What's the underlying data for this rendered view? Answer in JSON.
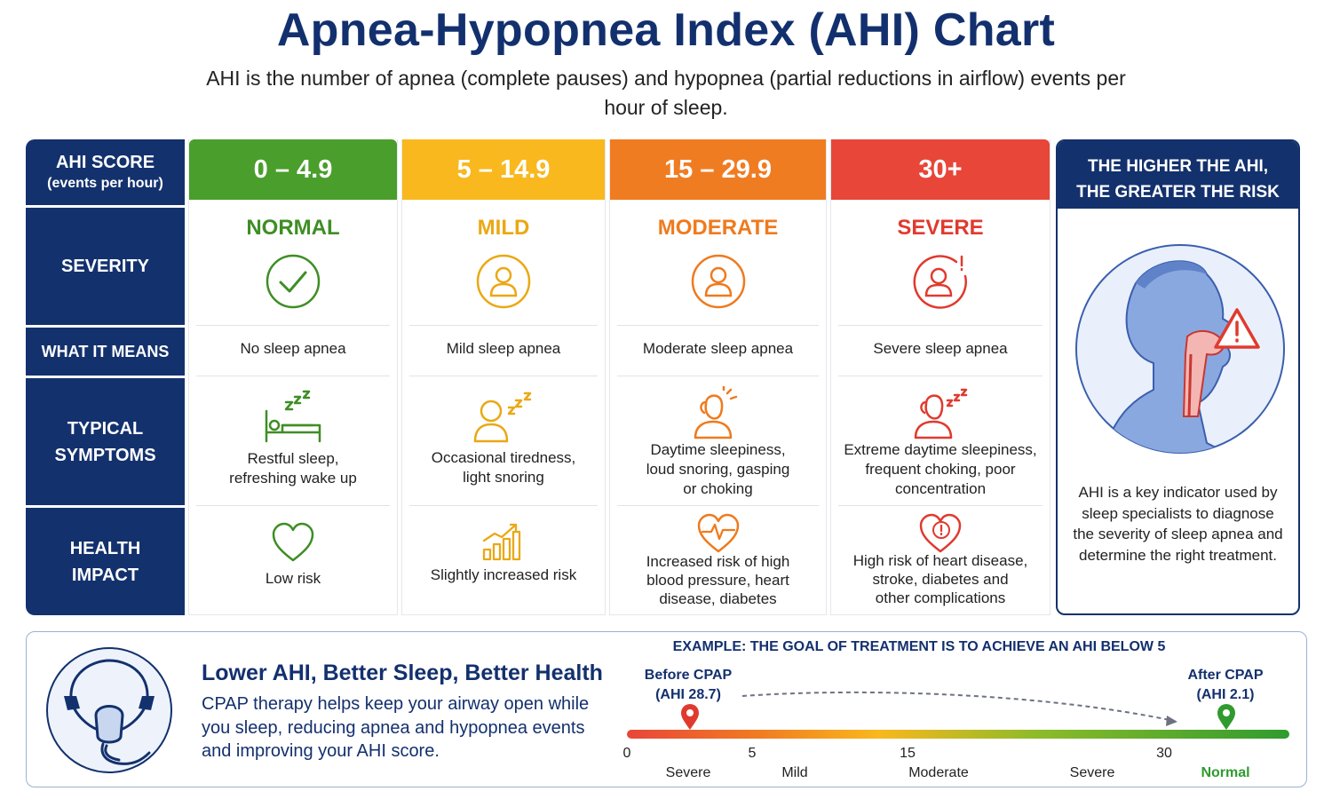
{
  "title": "Apnea-Hypopnea Index (AHI) Chart",
  "subtitle": "AHI is the number of apnea (complete pauses) and hypopnea (partial reductions in airflow) events per hour of sleep.",
  "labels": {
    "score_line1": "AHI SCORE",
    "score_line2": "(events per hour)",
    "severity": "SEVERITY",
    "what_it_means": "WHAT IT MEANS",
    "symptoms_line1": "TYPICAL",
    "symptoms_line2": "SYMPTOMS",
    "impact_line1": "HEALTH",
    "impact_line2": "IMPACT"
  },
  "categories": [
    {
      "range": "0 – 4.9",
      "severity": "NORMAL",
      "meaning": "No sleep apnea",
      "symptom_lines": [
        "Restful sleep,",
        "refreshing wake up"
      ],
      "impact_lines": [
        "Low risk"
      ],
      "color": "#4a9e2c",
      "text_color": "#3e8e24",
      "sym_icon": "sleeping-bed-icon",
      "sev_icon": "checkmark-circle-icon",
      "imp_icon": "heart-icon"
    },
    {
      "range": "5 – 14.9",
      "severity": "MILD",
      "meaning": "Mild sleep apnea",
      "symptom_lines": [
        "Occasional tiredness,",
        "light snoring"
      ],
      "impact_lines": [
        "Slightly increased risk"
      ],
      "color": "#f9b81e",
      "text_color": "#eaa814",
      "sym_icon": "sleepy-person-icon",
      "sev_icon": "person-circle-icon",
      "imp_icon": "rising-bars-icon"
    },
    {
      "range": "15 – 29.9",
      "severity": "MODERATE",
      "meaning": "Moderate sleep apnea",
      "symptom_lines": [
        "Daytime sleepiness,",
        "loud snoring, gasping",
        "or choking"
      ],
      "impact_lines": [
        "Increased risk of high",
        "blood pressure, heart",
        "disease, diabetes"
      ],
      "color": "#f07c22",
      "text_color": "#ef7a1e",
      "sym_icon": "tired-person-icon",
      "sev_icon": "person-circle-icon",
      "imp_icon": "heartbeat-icon"
    },
    {
      "range": "30+",
      "severity": "SEVERE",
      "meaning": "Severe sleep apnea",
      "symptom_lines": [
        "Extreme daytime sleepiness,",
        "frequent choking, poor",
        "concentration"
      ],
      "impact_lines": [
        "High risk of heart disease,",
        "stroke, diabetes and",
        "other complications"
      ],
      "color": "#e84639",
      "text_color": "#e03a2f",
      "sym_icon": "exhausted-person-icon",
      "sev_icon": "person-alert-circle-icon",
      "imp_icon": "heart-alert-icon"
    }
  ],
  "risk_panel": {
    "head_line1": "THE HIGHER THE AHI,",
    "head_line2": "THE GREATER THE RISK",
    "text": "AHI is a key indicator used by sleep specialists to diagnose the severity of sleep apnea and determine the right treatment."
  },
  "bottom": {
    "title": "Lower AHI, Better Sleep, Better Health",
    "text": "CPAP therapy helps keep your airway open while you sleep, reducing apnea and hypopnea events and improving your AHI score.",
    "example_title": "EXAMPLE: THE GOAL OF TREATMENT IS TO ACHIEVE AN AHI BELOW 5",
    "before_line1": "Before CPAP",
    "before_line2": "(AHI 28.7)",
    "after_line1": "After CPAP",
    "after_line2": "(AHI 2.1)",
    "ticks": [
      "0",
      "5",
      "15",
      "30"
    ],
    "zone_labels": [
      "Severe",
      "Mild",
      "Moderate",
      "Severe",
      "Normal"
    ]
  },
  "colors": {
    "navy": "#13316d",
    "green": "#4a9e2c",
    "yellow": "#f9b81e",
    "orange": "#f07c22",
    "red": "#e84639"
  }
}
